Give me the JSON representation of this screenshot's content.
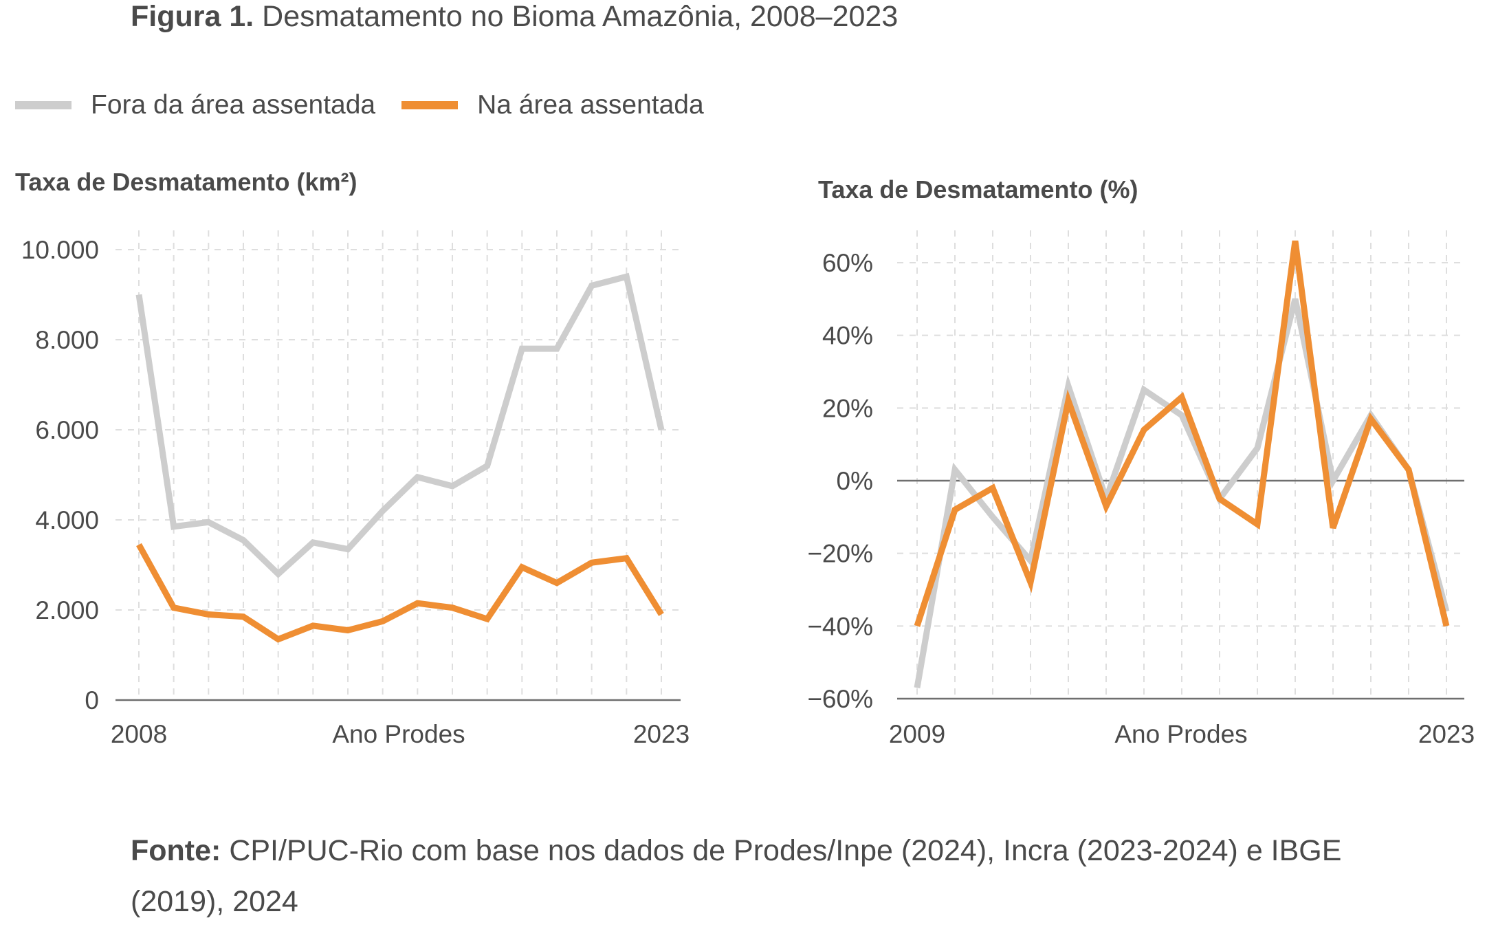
{
  "title": {
    "prefix": "Figura 1.",
    "text": "Desmatamento no Bioma Amazônia, 2008–2023"
  },
  "legend": [
    {
      "label": "Fora da área assentada",
      "color": "#cdcdcd"
    },
    {
      "label": "Na área assentada",
      "color": "#ef8e33"
    }
  ],
  "source": {
    "prefix": "Fonte:",
    "text": "CPI/PUC-Rio com base nos dados de Prodes/Inpe (2024), Incra (2023-2024) e IBGE (2019), 2024"
  },
  "chart_data": [
    {
      "type": "line",
      "ylabel": "Taxa de Desmatamento (km²)",
      "xlabel": "Ano Prodes",
      "x_tick_labels": [
        "2008",
        "2023"
      ],
      "x": [
        2008,
        2009,
        2010,
        2011,
        2012,
        2013,
        2014,
        2015,
        2016,
        2017,
        2018,
        2019,
        2020,
        2021,
        2022,
        2023
      ],
      "ylim": [
        0,
        10000
      ],
      "yticks": [
        0,
        2000,
        4000,
        6000,
        8000,
        10000
      ],
      "ytick_labels": [
        "0",
        "2.000",
        "4.000",
        "6.000",
        "8.000",
        "10.000"
      ],
      "grid": true,
      "series": [
        {
          "name": "Fora da área assentada",
          "color": "#cdcdcd",
          "values": [
            9000,
            3850,
            3950,
            3550,
            2800,
            3500,
            3350,
            4200,
            4950,
            4750,
            5200,
            7800,
            7800,
            9200,
            9400,
            6000
          ]
        },
        {
          "name": "Na área assentada",
          "color": "#ef8e33",
          "values": [
            3450,
            2050,
            1900,
            1850,
            1350,
            1650,
            1550,
            1750,
            2150,
            2050,
            1800,
            2950,
            2600,
            3050,
            3150,
            1900
          ]
        }
      ]
    },
    {
      "type": "line",
      "ylabel": "Taxa de Desmatamento (%)",
      "xlabel": "Ano Prodes",
      "x_tick_labels": [
        "2009",
        "2023"
      ],
      "x": [
        2009,
        2010,
        2011,
        2012,
        2013,
        2014,
        2015,
        2016,
        2017,
        2018,
        2019,
        2020,
        2021,
        2022,
        2023
      ],
      "ylim": [
        -60,
        60
      ],
      "yticks": [
        -60,
        -40,
        -20,
        0,
        20,
        40,
        60
      ],
      "ytick_labels": [
        "−60%",
        "−40%",
        "−20%",
        "0%",
        "20%",
        "40%",
        "60%"
      ],
      "grid": true,
      "series": [
        {
          "name": "Fora da área assentada",
          "color": "#cdcdcd",
          "values": [
            -57,
            3,
            -10,
            -22,
            26,
            -5,
            25,
            18,
            -5,
            9,
            50,
            0,
            18,
            3,
            -36
          ]
        },
        {
          "name": "Na área assentada",
          "color": "#ef8e33",
          "values": [
            -40,
            -8,
            -2,
            -28,
            22,
            -7,
            14,
            23,
            -5,
            -12,
            66,
            -13,
            17,
            3,
            -40
          ]
        }
      ]
    }
  ]
}
